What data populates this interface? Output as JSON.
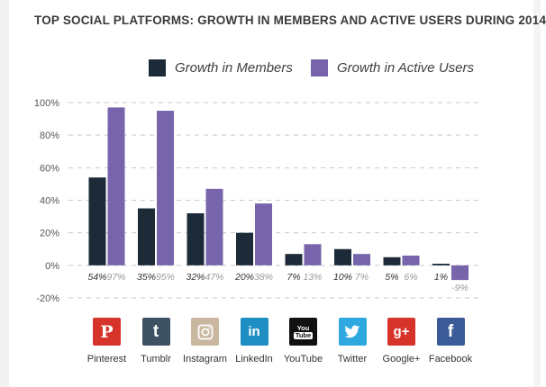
{
  "title": "TOP SOCIAL PLATFORMS: GROWTH IN MEMBERS AND ACTIVE USERS DURING 2014",
  "colors": {
    "members": "#1d2b38",
    "active": "#7765ab",
    "grid": "#c9c9c9",
    "members_label": "#333333",
    "active_label": "#9a9a9a"
  },
  "legend": {
    "members_label": "Growth in Members",
    "active_label": "Growth in Active Users"
  },
  "platforms": [
    {
      "name": "Pinterest",
      "icon": "pinterest-icon",
      "glyph": "P",
      "color": "#d6332a"
    },
    {
      "name": "Tumblr",
      "icon": "tumblr-icon",
      "glyph": "t",
      "color": "#3e5163"
    },
    {
      "name": "Instagram",
      "icon": "instagram-icon",
      "glyph": "",
      "color": "#c9b79f"
    },
    {
      "name": "LinkedIn",
      "icon": "linkedin-icon",
      "glyph": "in",
      "color": "#1f8ec3"
    },
    {
      "name": "YouTube",
      "icon": "youtube-icon",
      "glyph": "You Tube",
      "color": "#111111"
    },
    {
      "name": "Twitter",
      "icon": "twitter-icon",
      "glyph": "",
      "color": "#2ea9e0"
    },
    {
      "name": "Google+",
      "icon": "google-plus-icon",
      "glyph": "g+",
      "color": "#d6332a"
    },
    {
      "name": "Facebook",
      "icon": "facebook-icon",
      "glyph": "f",
      "color": "#3b5a98"
    }
  ],
  "chart_data": {
    "type": "bar",
    "title": "TOP SOCIAL PLATFORMS: GROWTH IN MEMBERS AND ACTIVE USERS DURING 2014",
    "categories": [
      "Pinterest",
      "Tumblr",
      "Instagram",
      "LinkedIn",
      "YouTube",
      "Twitter",
      "Google+",
      "Facebook"
    ],
    "series": [
      {
        "name": "Growth in Members",
        "values": [
          54,
          35,
          32,
          20,
          7,
          10,
          5,
          1
        ],
        "labels": [
          "54%",
          "35%",
          "32%",
          "20%",
          "7%",
          "10%",
          "5%",
          "1%"
        ]
      },
      {
        "name": "Growth in Active Users",
        "values": [
          97,
          95,
          47,
          38,
          13,
          7,
          6,
          -9
        ],
        "labels": [
          "97%",
          "95%",
          "47%",
          "38%",
          "13%",
          "7%",
          "6%",
          "-9%"
        ]
      }
    ],
    "yticks": [
      "100%",
      "80%",
      "60%",
      "40%",
      "20%",
      "0%",
      "-20%"
    ],
    "ytick_values": [
      100,
      80,
      60,
      40,
      20,
      0,
      -20
    ],
    "ylim": [
      -20,
      100
    ],
    "grid": true,
    "legend_position": "top"
  }
}
